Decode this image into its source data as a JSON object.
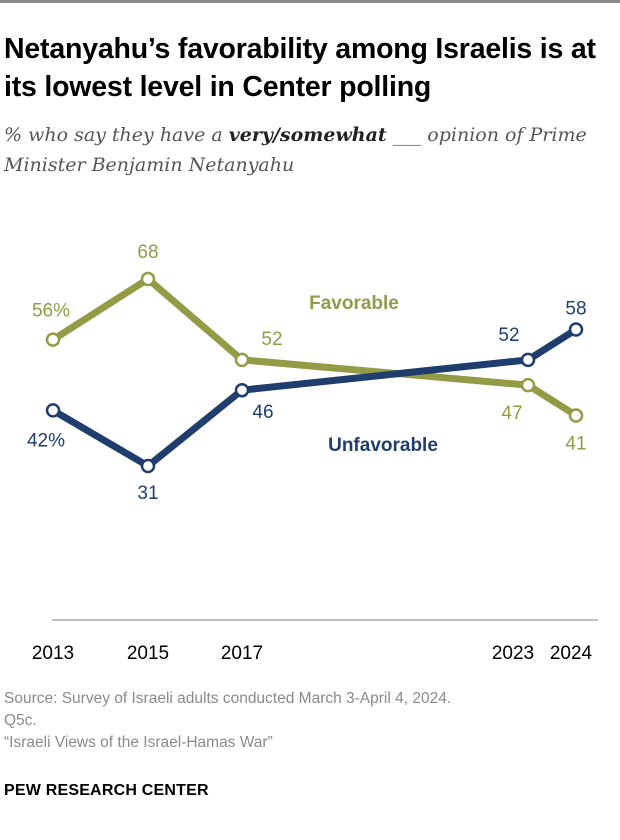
{
  "title": "Netanyahu’s favorability among Israelis is at its lowest level in Center polling",
  "subtitle": {
    "prefix": "% who say they have a ",
    "emphasis": "very/somewhat",
    "suffix": " ___ opinion of Prime Minister Benjamin Netanyahu"
  },
  "colors": {
    "favorable": "#939b47",
    "unfavorable": "#1f3e6e",
    "axis": "#9a9a9a",
    "text": "#000000"
  },
  "chart_data": {
    "type": "line",
    "x": [
      2013,
      2015,
      2017,
      2023,
      2024
    ],
    "tick_labels": [
      "2013",
      "2015",
      "2017",
      "2023",
      "2024"
    ],
    "ylim": [
      20,
      80
    ],
    "series": [
      {
        "name": "Favorable",
        "values": [
          56,
          68,
          52,
          47,
          41
        ],
        "labels": [
          "56%",
          "68",
          "52",
          "47",
          "41"
        ]
      },
      {
        "name": "Unfavorable",
        "values": [
          42,
          31,
          46,
          52,
          58
        ],
        "labels": [
          "42%",
          "31",
          "46",
          "52",
          "58"
        ]
      }
    ]
  },
  "source": {
    "line1": "Source: Survey of Israeli adults conducted March 3-April 4, 2024.",
    "line2": "Q5c.",
    "line3": "“Israeli Views of the Israel-Hamas War”"
  },
  "brand": "PEW RESEARCH CENTER"
}
